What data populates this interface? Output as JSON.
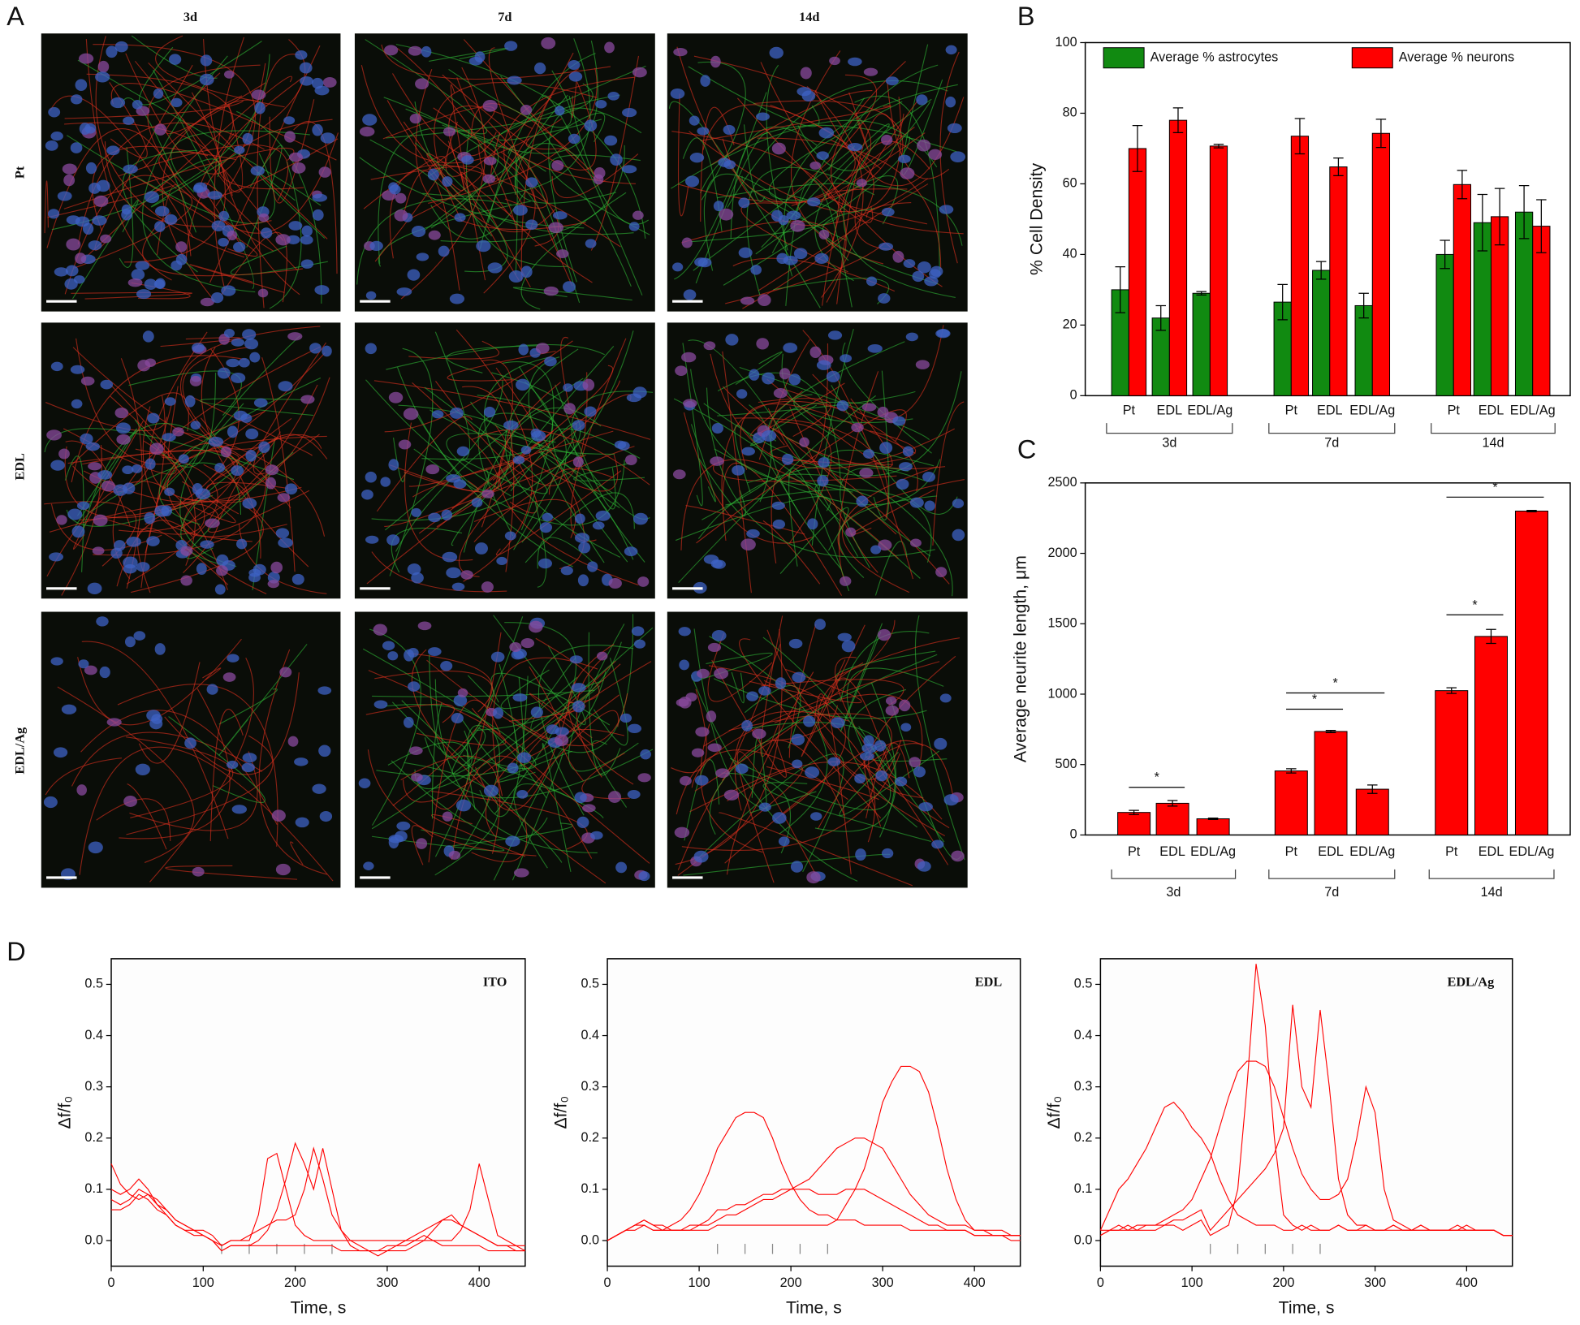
{
  "image_panel": {
    "label": "A",
    "columns": [
      "3d",
      "7d",
      "14d"
    ],
    "rows": [
      "Pt",
      "EDL",
      "EDL/Ag"
    ]
  },
  "chart_data": [
    {
      "type": "grouped-bar",
      "panel_label": "B",
      "ylabel": "% Cell Density",
      "categories": [
        "Pt",
        "EDL",
        "EDL/Ag",
        "Pt",
        "EDL",
        "EDL/Ag",
        "Pt",
        "EDL",
        "EDL/Ag"
      ],
      "groups": [
        "3d",
        "7d",
        "14d"
      ],
      "series": [
        {
          "name": "Average % astrocytes",
          "color": "#118a11",
          "values": [
            30,
            22,
            29,
            26.5,
            35.5,
            25.5,
            40,
            49,
            52
          ],
          "errors": [
            6.5,
            3.5,
            0.5,
            5,
            2.5,
            3.5,
            4,
            8,
            7.5
          ]
        },
        {
          "name": "Average % neurons",
          "color": "#ff0000",
          "values": [
            70,
            78,
            70.7,
            73.5,
            64.8,
            74.3,
            59.8,
            50.7,
            48
          ],
          "errors": [
            6.5,
            3.5,
            0.5,
            5,
            2.5,
            4,
            4,
            8,
            7.5
          ]
        }
      ],
      "ylim": [
        0,
        100
      ],
      "yticks": [
        0,
        20,
        40,
        60,
        80,
        100
      ]
    },
    {
      "type": "bar",
      "panel_label": "C",
      "ylabel": "Average neurite length, μm",
      "categories": [
        "Pt",
        "EDL",
        "EDL/Ag",
        "Pt",
        "EDL",
        "EDL/Ag",
        "Pt",
        "EDL",
        "EDL/Ag"
      ],
      "groups": [
        "3d",
        "7d",
        "14d"
      ],
      "color": "#ff0000",
      "values": [
        160,
        225,
        115,
        455,
        735,
        325,
        1025,
        1410,
        2300
      ],
      "errors": [
        15,
        20,
        5,
        15,
        8,
        30,
        20,
        50,
        5
      ],
      "significance": [
        "*",
        "*",
        "*",
        "*",
        "*"
      ],
      "ylim": [
        0,
        2500
      ],
      "yticks": [
        0,
        500,
        1000,
        1500,
        2000,
        2500
      ]
    },
    {
      "type": "line",
      "panel_label": "D",
      "title": "ITO",
      "xlabel": "Time, s",
      "ylabel": "Δf/f₀",
      "x": [
        0,
        10,
        20,
        30,
        40,
        50,
        60,
        70,
        80,
        90,
        100,
        110,
        120,
        130,
        140,
        150,
        160,
        170,
        180,
        190,
        200,
        210,
        220,
        230,
        240,
        250,
        260,
        270,
        280,
        290,
        300,
        310,
        320,
        330,
        340,
        350,
        360,
        370,
        380,
        390,
        400,
        410,
        420,
        430,
        440,
        450
      ],
      "stimulus_times": [
        120,
        150,
        180,
        210,
        240
      ],
      "series": [
        {
          "color": "#ff0000",
          "values": [
            0.1,
            0.09,
            0.1,
            0.12,
            0.1,
            0.07,
            0.05,
            0.03,
            0.02,
            0.01,
            0.01,
            0.0,
            -0.02,
            -0.01,
            -0.01,
            -0.01,
            -0.01,
            -0.01,
            -0.01,
            -0.01,
            -0.01,
            -0.01,
            -0.01,
            -0.01,
            -0.01,
            -0.02,
            -0.02,
            -0.02,
            -0.02,
            -0.02,
            -0.02,
            -0.01,
            -0.01,
            0.0,
            0.01,
            0.0,
            -0.01,
            -0.01,
            -0.01,
            -0.01,
            -0.01,
            -0.02,
            -0.02,
            -0.02,
            -0.02,
            -0.02
          ]
        },
        {
          "color": "#ff0000",
          "values": [
            0.15,
            0.11,
            0.09,
            0.08,
            0.09,
            0.07,
            0.06,
            0.04,
            0.03,
            0.02,
            0.02,
            0.01,
            -0.01,
            0.0,
            0.0,
            0.0,
            0.05,
            0.16,
            0.17,
            0.1,
            0.03,
            0.01,
            0.0,
            0.0,
            0.0,
            0.0,
            0.0,
            0.0,
            0.0,
            0.0,
            0.0,
            0.0,
            0.0,
            0.0,
            0.0,
            0.0,
            0.0,
            0.0,
            0.02,
            0.06,
            0.15,
            0.08,
            0.01,
            0.0,
            -0.01,
            -0.01
          ]
        },
        {
          "color": "#ff0000",
          "values": [
            0.08,
            0.07,
            0.08,
            0.1,
            0.09,
            0.08,
            0.06,
            0.04,
            0.03,
            0.02,
            0.01,
            0.0,
            -0.02,
            -0.01,
            -0.01,
            -0.01,
            0.0,
            0.02,
            0.06,
            0.12,
            0.19,
            0.15,
            0.1,
            0.18,
            0.1,
            0.02,
            -0.01,
            -0.02,
            -0.02,
            -0.02,
            -0.01,
            -0.01,
            0.0,
            0.01,
            0.02,
            0.03,
            0.04,
            0.04,
            0.03,
            0.02,
            0.01,
            0.0,
            -0.01,
            -0.01,
            -0.02,
            -0.02
          ]
        },
        {
          "color": "#ff0000",
          "values": [
            0.06,
            0.06,
            0.07,
            0.09,
            0.08,
            0.06,
            0.05,
            0.03,
            0.02,
            0.02,
            0.01,
            0.0,
            -0.01,
            0.0,
            0.0,
            0.01,
            0.02,
            0.03,
            0.04,
            0.04,
            0.05,
            0.1,
            0.18,
            0.12,
            0.05,
            0.02,
            0.0,
            -0.01,
            -0.02,
            -0.03,
            -0.02,
            -0.02,
            -0.02,
            -0.01,
            0.0,
            0.02,
            0.04,
            0.05,
            0.03,
            0.02,
            0.01,
            0.0,
            -0.01,
            -0.01,
            -0.01,
            -0.02
          ]
        }
      ],
      "xlim": [
        0,
        450
      ],
      "xticks": [
        0,
        100,
        200,
        300,
        400
      ],
      "ylim": [
        -0.05,
        0.55
      ],
      "yticks": [
        {
          "value": 0,
          "label": "0.0"
        },
        0.1,
        0.2,
        0.3,
        0.4,
        0.5
      ]
    },
    {
      "type": "line",
      "title": "EDL",
      "xlabel": "Time, s",
      "ylabel": "Δf/f₀",
      "x": [
        0,
        10,
        20,
        30,
        40,
        50,
        60,
        70,
        80,
        90,
        100,
        110,
        120,
        130,
        140,
        150,
        160,
        170,
        180,
        190,
        200,
        210,
        220,
        230,
        240,
        250,
        260,
        270,
        280,
        290,
        300,
        310,
        320,
        330,
        340,
        350,
        360,
        370,
        380,
        390,
        400,
        410,
        420,
        430,
        440,
        450
      ],
      "stimulus_times": [
        120,
        150,
        180,
        210,
        240
      ],
      "series": [
        {
          "color": "#ff0000",
          "values": [
            0.0,
            0.01,
            0.02,
            0.03,
            0.04,
            0.03,
            0.03,
            0.02,
            0.02,
            0.02,
            0.02,
            0.02,
            0.03,
            0.03,
            0.03,
            0.03,
            0.03,
            0.03,
            0.03,
            0.03,
            0.03,
            0.03,
            0.03,
            0.03,
            0.03,
            0.04,
            0.07,
            0.1,
            0.14,
            0.2,
            0.27,
            0.31,
            0.34,
            0.34,
            0.33,
            0.29,
            0.22,
            0.14,
            0.08,
            0.04,
            0.02,
            0.02,
            0.01,
            0.01,
            0.01,
            0.01
          ]
        },
        {
          "color": "#ff0000",
          "values": [
            0.0,
            0.01,
            0.02,
            0.03,
            0.03,
            0.02,
            0.02,
            0.03,
            0.04,
            0.06,
            0.09,
            0.13,
            0.18,
            0.21,
            0.24,
            0.25,
            0.25,
            0.24,
            0.2,
            0.15,
            0.11,
            0.08,
            0.06,
            0.05,
            0.05,
            0.04,
            0.04,
            0.04,
            0.03,
            0.03,
            0.03,
            0.03,
            0.03,
            0.02,
            0.02,
            0.02,
            0.02,
            0.02,
            0.02,
            0.02,
            0.01,
            0.01,
            0.01,
            0.01,
            0.01,
            0.01
          ]
        },
        {
          "color": "#ff0000",
          "values": [
            0.0,
            0.01,
            0.02,
            0.03,
            0.04,
            0.03,
            0.02,
            0.02,
            0.02,
            0.02,
            0.03,
            0.03,
            0.04,
            0.05,
            0.05,
            0.06,
            0.07,
            0.08,
            0.08,
            0.09,
            0.1,
            0.11,
            0.12,
            0.14,
            0.16,
            0.18,
            0.19,
            0.2,
            0.2,
            0.19,
            0.18,
            0.15,
            0.12,
            0.09,
            0.07,
            0.05,
            0.04,
            0.03,
            0.03,
            0.03,
            0.02,
            0.02,
            0.02,
            0.02,
            0.01,
            0.01
          ]
        },
        {
          "color": "#ff0000",
          "values": [
            0.0,
            0.01,
            0.02,
            0.02,
            0.03,
            0.02,
            0.02,
            0.02,
            0.02,
            0.03,
            0.03,
            0.04,
            0.06,
            0.06,
            0.07,
            0.07,
            0.08,
            0.09,
            0.09,
            0.1,
            0.1,
            0.1,
            0.1,
            0.09,
            0.09,
            0.09,
            0.1,
            0.1,
            0.1,
            0.09,
            0.08,
            0.07,
            0.06,
            0.05,
            0.04,
            0.03,
            0.03,
            0.02,
            0.02,
            0.02,
            0.01,
            0.01,
            0.01,
            0.01,
            0.0,
            0.0
          ]
        }
      ],
      "xlim": [
        0,
        450
      ],
      "xticks": [
        0,
        100,
        200,
        300,
        400
      ],
      "ylim": [
        -0.05,
        0.55
      ],
      "yticks": [
        {
          "value": 0,
          "label": "0.0"
        },
        0.1,
        0.2,
        0.3,
        0.4,
        0.5
      ]
    },
    {
      "type": "line",
      "title": "EDL/Ag",
      "xlabel": "Time, s",
      "ylabel": "Δf/f₀",
      "x": [
        0,
        10,
        20,
        30,
        40,
        50,
        60,
        70,
        80,
        90,
        100,
        110,
        120,
        130,
        140,
        150,
        160,
        170,
        180,
        190,
        200,
        210,
        220,
        230,
        240,
        250,
        260,
        270,
        280,
        290,
        300,
        310,
        320,
        330,
        340,
        350,
        360,
        370,
        380,
        390,
        400,
        410,
        420,
        430,
        440,
        450
      ],
      "stimulus_times": [
        120,
        150,
        180,
        210,
        240
      ],
      "series": [
        {
          "color": "#ff0000",
          "values": [
            0.01,
            0.02,
            0.02,
            0.03,
            0.02,
            0.02,
            0.02,
            0.03,
            0.03,
            0.02,
            0.03,
            0.04,
            0.01,
            0.02,
            0.03,
            0.1,
            0.3,
            0.54,
            0.42,
            0.2,
            0.05,
            0.03,
            0.02,
            0.03,
            0.02,
            0.02,
            0.03,
            0.02,
            0.02,
            0.03,
            0.02,
            0.02,
            0.03,
            0.02,
            0.02,
            0.03,
            0.02,
            0.02,
            0.02,
            0.02,
            0.03,
            0.02,
            0.02,
            0.02,
            0.01,
            0.01
          ]
        },
        {
          "color": "#ff0000",
          "values": [
            0.02,
            0.02,
            0.03,
            0.02,
            0.02,
            0.03,
            0.03,
            0.03,
            0.04,
            0.04,
            0.05,
            0.06,
            0.02,
            0.04,
            0.06,
            0.08,
            0.1,
            0.12,
            0.14,
            0.17,
            0.22,
            0.46,
            0.3,
            0.26,
            0.45,
            0.3,
            0.12,
            0.05,
            0.03,
            0.03,
            0.02,
            0.02,
            0.03,
            0.02,
            0.02,
            0.02,
            0.02,
            0.02,
            0.02,
            0.03,
            0.02,
            0.02,
            0.02,
            0.02,
            0.01,
            0.01
          ]
        },
        {
          "color": "#ff0000",
          "values": [
            0.02,
            0.06,
            0.1,
            0.12,
            0.15,
            0.18,
            0.22,
            0.26,
            0.27,
            0.25,
            0.22,
            0.2,
            0.17,
            0.12,
            0.08,
            0.05,
            0.04,
            0.03,
            0.03,
            0.03,
            0.02,
            0.02,
            0.03,
            0.02,
            0.02,
            0.02,
            0.03,
            0.02,
            0.02,
            0.02,
            0.02,
            0.02,
            0.02,
            0.02,
            0.02,
            0.03,
            0.02,
            0.02,
            0.02,
            0.02,
            0.02,
            0.02,
            0.02,
            0.02,
            0.01,
            0.01
          ]
        },
        {
          "color": "#ff0000",
          "values": [
            0.01,
            0.02,
            0.02,
            0.02,
            0.03,
            0.03,
            0.03,
            0.04,
            0.05,
            0.06,
            0.08,
            0.12,
            0.16,
            0.22,
            0.28,
            0.33,
            0.35,
            0.35,
            0.34,
            0.3,
            0.24,
            0.18,
            0.13,
            0.1,
            0.08,
            0.08,
            0.09,
            0.12,
            0.2,
            0.3,
            0.25,
            0.1,
            0.04,
            0.03,
            0.02,
            0.02,
            0.02,
            0.02,
            0.02,
            0.02,
            0.02,
            0.02,
            0.02,
            0.02,
            0.01,
            0.01
          ]
        }
      ],
      "xlim": [
        0,
        450
      ],
      "xticks": [
        0,
        100,
        200,
        300,
        400
      ],
      "ylim": [
        -0.05,
        0.55
      ],
      "yticks": [
        {
          "value": 0,
          "label": "0.0"
        },
        0.1,
        0.2,
        0.3,
        0.4,
        0.5
      ]
    }
  ]
}
